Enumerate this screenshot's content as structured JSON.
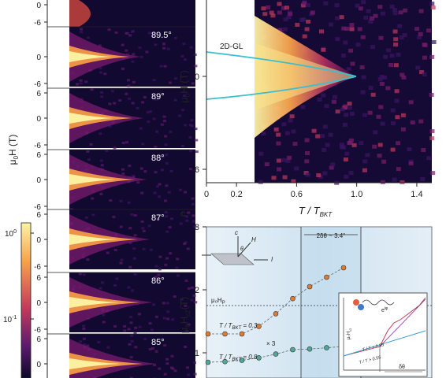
{
  "colors": {
    "background": "#ffffff",
    "heatmap_dark": "#0d0829",
    "heatmap_mid": "#7a1b6d",
    "heatmap_bright": "#f8a14a",
    "heatmap_max": "#fbf3a6",
    "fit_curve": "#3bbfcf",
    "panel_c_bg": "#dcebf5",
    "points_orange": "#e07a2e",
    "points_teal": "#4fa898"
  },
  "left_panel": {
    "angle_labels": [
      "89.5°",
      "89°",
      "88°",
      "87°",
      "86°",
      "85°"
    ],
    "y_label_main": "H (T)",
    "y_label_prefix": "μ",
    "y_label_sub": "0",
    "tick_top": [
      "0",
      "-6"
    ],
    "strip_ticks": [
      "6",
      "0",
      "-6"
    ],
    "colorbar_ticks": [
      "10",
      "10"
    ],
    "colorbar_exps": [
      "0",
      "-1"
    ]
  },
  "panel_b": {
    "curve_label": "2D-GL",
    "y_label_main": "H (T)",
    "y_label_prefix": "μ",
    "y_label_sub": "0",
    "y_ticks": [
      "0",
      "-6"
    ],
    "x_ticks": [
      "0",
      "0.2",
      "0.6",
      "1.0",
      "1.4"
    ],
    "x_label_main": "T / T",
    "x_label_sub": "BKT"
  },
  "panel_c": {
    "panel_letter": "c",
    "y_label_main": "H",
    "y_label_prefix": "μ",
    "y_label_sub1": "0",
    "y_label_sub2": "c2",
    "y_label_unit": "(T)",
    "y_ticks": [
      "3",
      "2",
      "1"
    ],
    "angle_bracket": "2δθ ~ 3.4°",
    "hp_label": "μ₀H",
    "hp_sub": "P",
    "series_labels": [
      {
        "prefix": "T / T",
        "sub": "BKT",
        "suffix": " = 0.3"
      },
      {
        "prefix": "T / T",
        "sub": "BKT",
        "suffix": " = 0.8"
      }
    ],
    "multiplier": "× 3",
    "schematic": {
      "c_axis": "c",
      "h_field": "H",
      "theta": "θ",
      "current": "I"
    },
    "inset": {
      "ylabel": "μ₀H",
      "ylabel_sub": "c2",
      "phase_label": "e",
      "phase_sup": "iφ",
      "line1": "T / T < 0.55",
      "line2": "T / T > 0.55",
      "delta": "δθ"
    }
  },
  "chart_data": [
    {
      "type": "heatmap",
      "title": "",
      "xlabel": "",
      "ylabel": "μ0H (T)",
      "ylim": [
        -6,
        6
      ],
      "series": [
        {
          "name": "89.5°"
        },
        {
          "name": "89°"
        },
        {
          "name": "88°"
        },
        {
          "name": "87°"
        },
        {
          "name": "86°"
        },
        {
          "name": "85°"
        }
      ],
      "colorbar": {
        "ticks": [
          "10^0",
          "10^-1"
        ],
        "scale": "log"
      }
    },
    {
      "type": "heatmap",
      "title": "",
      "xlabel": "T / T_BKT",
      "ylabel": "μ0H (T)",
      "xlim": [
        0,
        1.5
      ],
      "ylim": [
        -7,
        3
      ],
      "x_ticks": [
        0,
        0.2,
        0.6,
        1.0,
        1.4
      ],
      "y_ticks": [
        0,
        -6
      ],
      "series": [
        {
          "name": "2D-GL",
          "x": [
            0,
            0.3,
            0.5,
            0.7,
            0.85,
            0.95,
            1.0
          ],
          "y_upper": [
            2.4,
            2.0,
            1.6,
            1.2,
            0.8,
            0.4,
            0.0
          ]
        }
      ]
    },
    {
      "type": "scatter",
      "title": "",
      "xlabel": "",
      "ylabel": "μ0Hc2 (T)",
      "ylim": [
        0.6,
        3.0
      ],
      "y_ticks": [
        1,
        2,
        3
      ],
      "hline": {
        "label": "μ0HP",
        "y": 1.6
      },
      "series": [
        {
          "name": "T / TBKT = 0.3",
          "x": [
            0,
            1,
            2,
            3,
            4,
            5,
            6,
            7,
            8
          ],
          "y": [
            1.3,
            1.3,
            1.3,
            1.42,
            1.62,
            1.86,
            2.05,
            2.2,
            2.35
          ]
        },
        {
          "name": "T / TBKT = 0.8",
          "x": [
            0,
            1,
            2,
            3,
            4,
            5,
            6,
            7,
            8
          ],
          "y": [
            0.85,
            0.86,
            0.88,
            0.92,
            0.98,
            1.05,
            1.06,
            1.08,
            1.1
          ]
        }
      ]
    }
  ]
}
